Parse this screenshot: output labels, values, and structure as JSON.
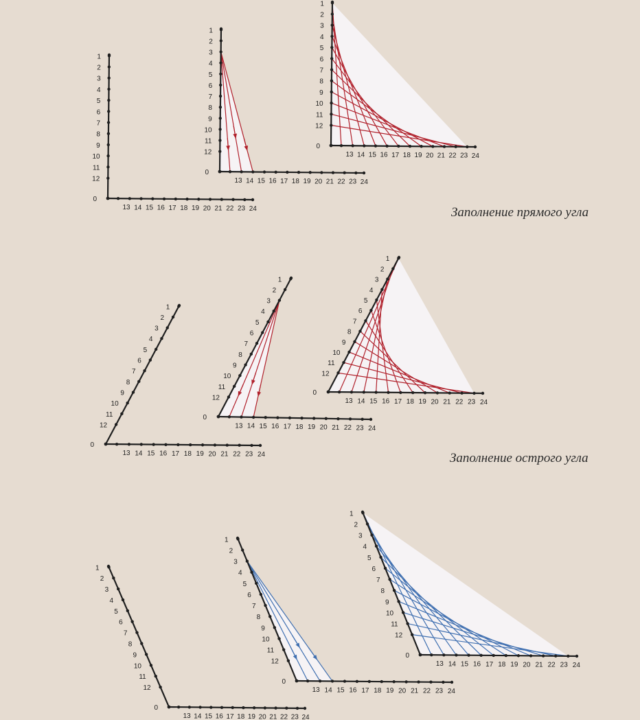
{
  "captions": {
    "right_angle": "Заполнение прямого угла",
    "acute_angle": "Заполнение острого угла"
  },
  "labels": {
    "arm_a": [
      "1",
      "2",
      "3",
      "4",
      "5",
      "6",
      "7",
      "8",
      "9",
      "10",
      "11",
      "12"
    ],
    "vertex": "0",
    "arm_b": [
      "13",
      "14",
      "15",
      "16",
      "17",
      "18",
      "19",
      "20",
      "21",
      "22",
      "23",
      "24"
    ]
  },
  "colors": {
    "background": "#e6dcd1",
    "axis": "#1f1f1f",
    "thread_red": "#b0202b",
    "thread_blue": "#3f6fb0",
    "fill": "#f7f5f8"
  },
  "rows": [
    {
      "name": "right-angle",
      "color": "thread_red",
      "diagrams": [
        {
          "name": "right-empty",
          "threads": "none"
        },
        {
          "name": "right-partial",
          "threads": "first lines 3–13, 3–15 with arrows"
        },
        {
          "name": "right-complete",
          "threads": "all 12 lines"
        }
      ]
    },
    {
      "name": "acute-angle",
      "color": "thread_red",
      "diagrams": [
        {
          "name": "acute-empty",
          "threads": "none"
        },
        {
          "name": "acute-partial",
          "threads": "first lines with arrows"
        },
        {
          "name": "acute-complete",
          "threads": "all 12 lines"
        }
      ]
    },
    {
      "name": "obtuse-angle",
      "color": "thread_blue",
      "diagrams": [
        {
          "name": "obtuse-empty",
          "threads": "none"
        },
        {
          "name": "obtuse-partial",
          "threads": "first lines with arrows"
        },
        {
          "name": "obtuse-complete",
          "threads": "all 12 lines"
        }
      ]
    }
  ]
}
